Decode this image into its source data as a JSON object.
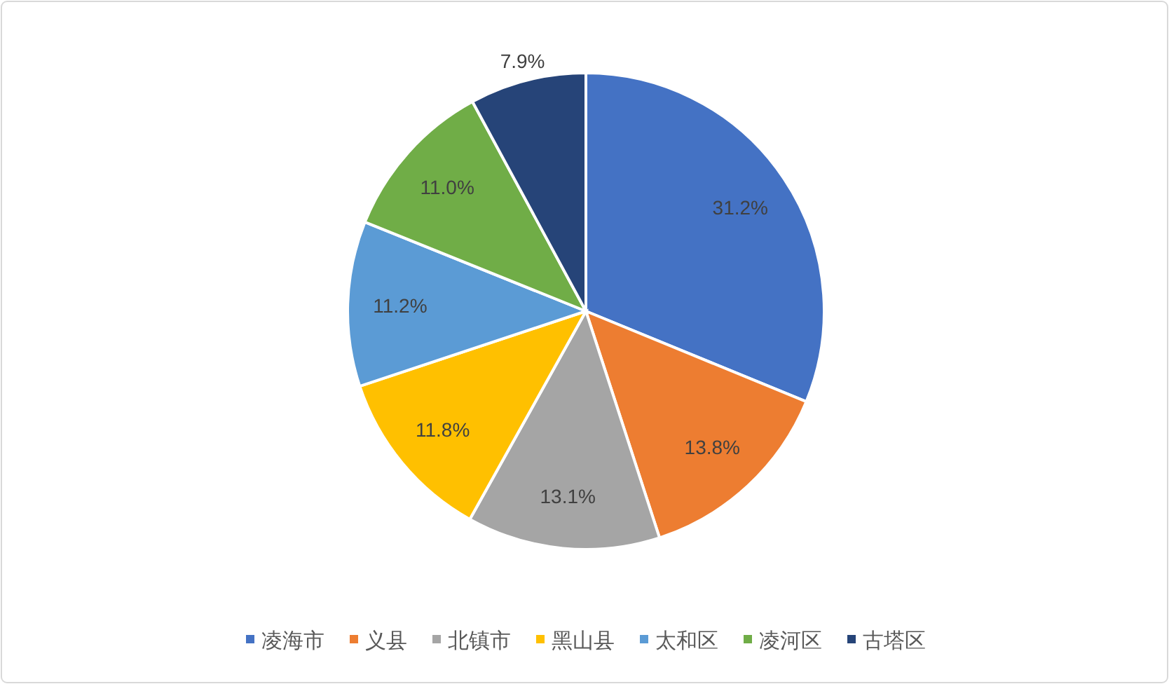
{
  "chart_data": {
    "type": "pie",
    "categories": [
      "凌海市",
      "义县",
      "北镇市",
      "黑山县",
      "太和区",
      "凌河区",
      "古塔区"
    ],
    "values": [
      31.2,
      13.8,
      13.1,
      11.8,
      11.2,
      11.0,
      7.9
    ],
    "colors": [
      "#4472c4",
      "#ed7d31",
      "#a5a5a5",
      "#ffc000",
      "#5b9bd5",
      "#70ad47",
      "#264478"
    ],
    "value_labels": [
      "31.2%",
      "13.8%",
      "13.1%",
      "11.8%",
      "11.2%",
      "11.0%",
      "7.9%"
    ],
    "legend": "bottom"
  }
}
